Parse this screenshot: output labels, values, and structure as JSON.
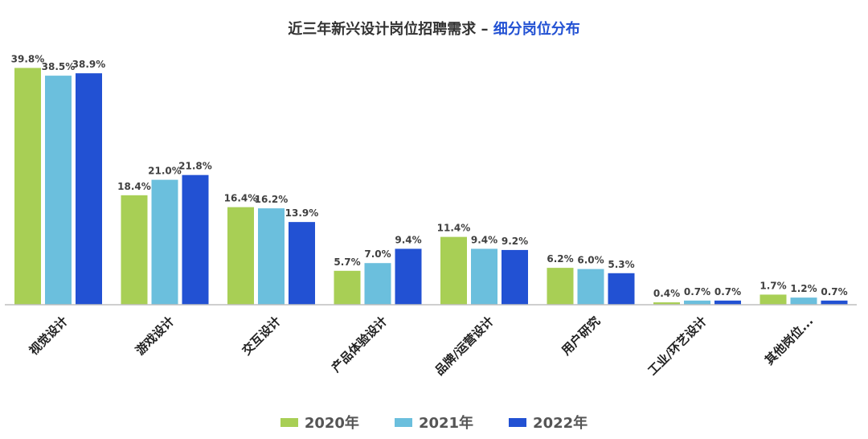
{
  "title": {
    "main": "近三年新兴设计岗位招聘需求 – ",
    "highlight": "细分岗位分布"
  },
  "chart_data": {
    "type": "bar",
    "categories": [
      "视觉设计",
      "游戏设计",
      "交互设计",
      "产品体验设计",
      "品牌/运营设计",
      "用户研究",
      "工业/环艺设计",
      "其他岗位..."
    ],
    "series": [
      {
        "name": "2020年",
        "color": "#a8cf55",
        "values": [
          39.8,
          18.4,
          16.4,
          5.7,
          11.4,
          6.2,
          0.4,
          1.7
        ],
        "labels": [
          "39.8%",
          "18.4%",
          "16.4%",
          "5.7%",
          "11.4%",
          "6.2%",
          "0.4%",
          "1.7%"
        ]
      },
      {
        "name": "2021年",
        "color": "#6bbfdd",
        "values": [
          38.5,
          21.0,
          16.2,
          7.0,
          9.4,
          6.0,
          0.7,
          1.2
        ],
        "labels": [
          "38.5%",
          "21.0%",
          "16.2%",
          "7.0%",
          "9.4%",
          "6.0%",
          "0.7%",
          "1.2%"
        ]
      },
      {
        "name": "2022年",
        "color": "#2251d3",
        "values": [
          38.9,
          21.8,
          13.9,
          9.4,
          9.2,
          5.3,
          0.7,
          0.7
        ],
        "labels": [
          "38.9%",
          "21.8%",
          "13.9%",
          "9.4%",
          "9.2%",
          "5.3%",
          "0.7%",
          "0.7%"
        ]
      }
    ],
    "ylim": [
      0,
      40
    ],
    "grid": false,
    "legend_position": "bottom"
  }
}
